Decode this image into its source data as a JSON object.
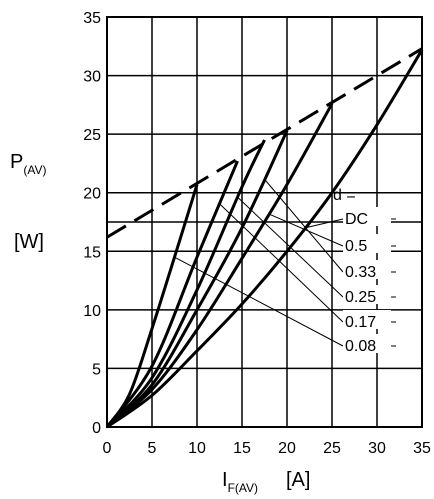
{
  "chart_data": {
    "type": "line",
    "x_ticks": [
      "0",
      "5",
      "10",
      "15",
      "20",
      "25",
      "30",
      "35"
    ],
    "y_ticks": [
      "0",
      "5",
      "10",
      "15",
      "20",
      "25",
      "30",
      "35"
    ],
    "xlim": [
      0,
      35
    ],
    "ylim": [
      0,
      35
    ],
    "grid": true,
    "ylabel": {
      "main": "P",
      "sub": "(AV)",
      "unit": "[W]"
    },
    "xlabel": {
      "main": "I",
      "sub": "F(AV)",
      "unit": "[A]"
    },
    "legend_title": "d =",
    "series": [
      {
        "name": "DC",
        "x": [
          0,
          5,
          10,
          15,
          20,
          25,
          30,
          35
        ],
        "y": [
          0,
          2.7,
          6.5,
          10.5,
          15.0,
          20.0,
          25.8,
          32.2
        ]
      },
      {
        "name": "0.5",
        "x": [
          0,
          5,
          10,
          15,
          20,
          25
        ],
        "y": [
          0,
          3.2,
          8.3,
          14.4,
          20.7,
          27.6
        ]
      },
      {
        "name": "0.33",
        "x": [
          0,
          5,
          10,
          15,
          20
        ],
        "y": [
          0,
          3.6,
          10.0,
          17.0,
          25.3
        ]
      },
      {
        "name": "0.25",
        "x": [
          0,
          5,
          10,
          15,
          17.5
        ],
        "y": [
          0,
          4.2,
          11.7,
          20.5,
          24.5
        ]
      },
      {
        "name": "0.17",
        "x": [
          0,
          5,
          10,
          14.5
        ],
        "y": [
          0,
          5.2,
          14.5,
          22.7
        ]
      },
      {
        "name": "0.08",
        "x": [
          0,
          2.5,
          5,
          7.5,
          10
        ],
        "y": [
          0,
          2.8,
          8.4,
          14.5,
          20.7
        ]
      }
    ],
    "envelope": {
      "style": "dashed",
      "x": [
        0,
        35
      ],
      "y": [
        16.2,
        32.3
      ]
    }
  }
}
